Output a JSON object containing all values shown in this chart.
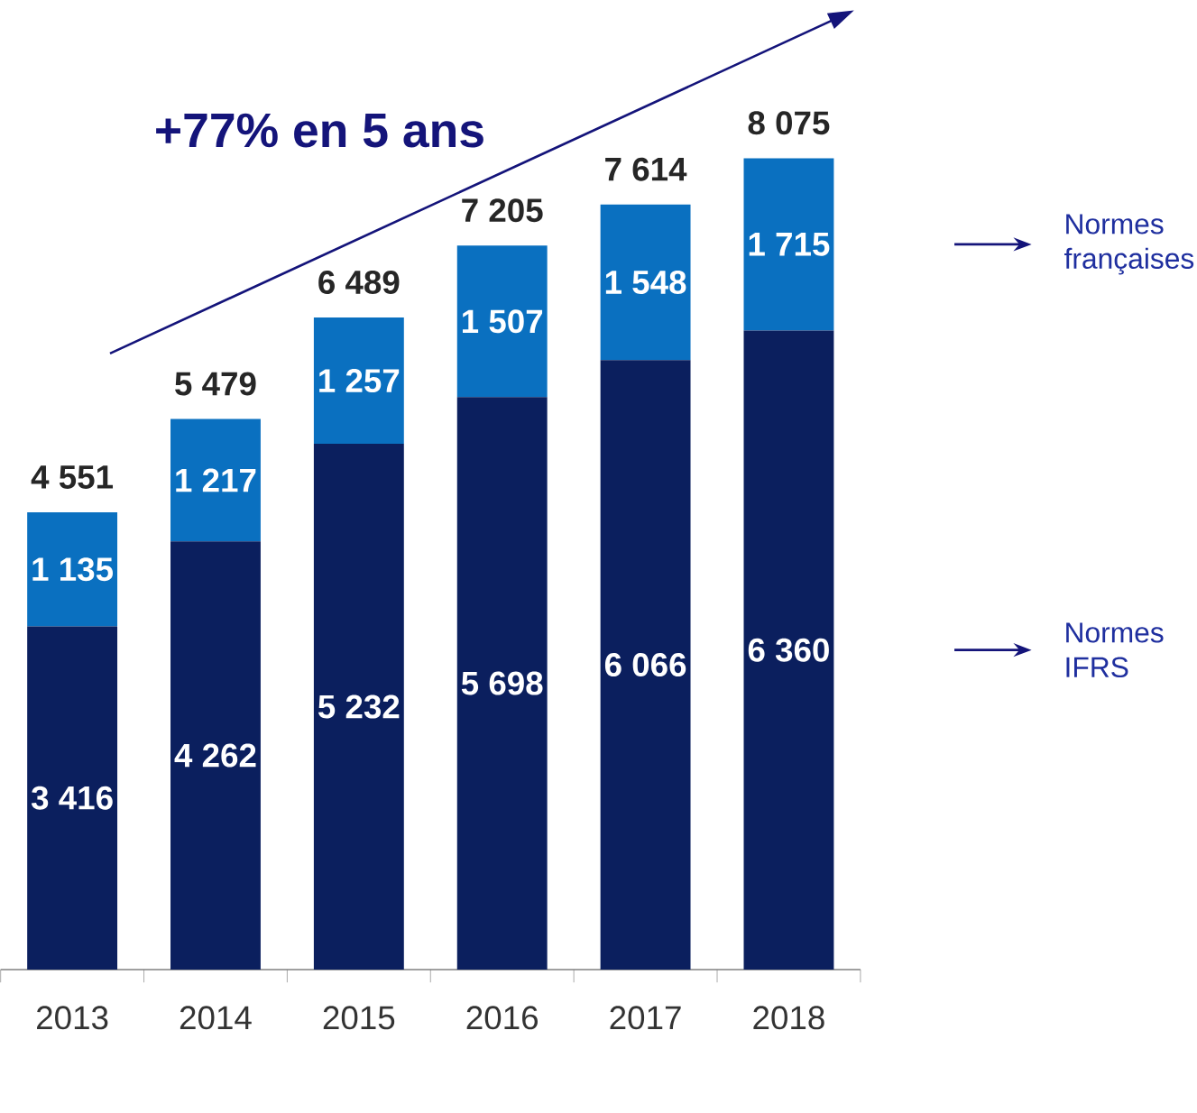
{
  "chart_data": {
    "type": "bar",
    "stacked": true,
    "annotations": [
      "+77% en 5 ans"
    ],
    "categories": [
      "2013",
      "2014",
      "2015",
      "2016",
      "2017",
      "2018"
    ],
    "series": [
      {
        "name": "Normes IFRS",
        "color": "#0b1f5e",
        "values": [
          3416,
          4262,
          5232,
          5698,
          6066,
          6360
        ],
        "value_labels": [
          "3 416",
          "4 262",
          "5 232",
          "5 698",
          "6 066",
          "6 360"
        ]
      },
      {
        "name": "Normes françaises",
        "color": "#0a70c0",
        "values": [
          1135,
          1217,
          1257,
          1507,
          1548,
          1715
        ],
        "value_labels": [
          "1 135",
          "1 217",
          "1 257",
          "1 507",
          "1 548",
          "1 715"
        ]
      }
    ],
    "totals": [
      "4 551",
      "5 479",
      "6 489",
      "7 205",
      "7 614",
      "8 075"
    ]
  }
}
